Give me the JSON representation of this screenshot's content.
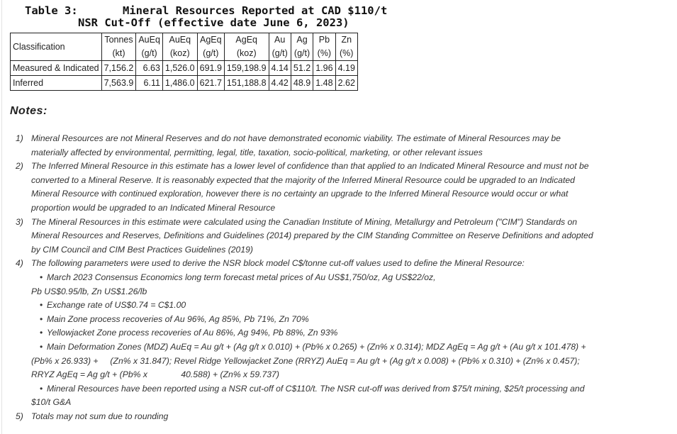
{
  "title": {
    "label": "Table 3:",
    "line1": "Mineral Resources Reported at CAD $110/t",
    "line2": "NSR Cut-Off (effective date June 6, 2023)"
  },
  "table": {
    "headers": [
      {
        "top": "Classification",
        "bottom": ""
      },
      {
        "top": "Tonnes",
        "bottom": "(kt)"
      },
      {
        "top": "AuEq",
        "bottom": "(g/t)"
      },
      {
        "top": "AuEq",
        "bottom": "(koz)"
      },
      {
        "top": "AgEq",
        "bottom": "(g/t)"
      },
      {
        "top": "AgEq",
        "bottom": "(koz)"
      },
      {
        "top": "Au",
        "bottom": "(g/t)"
      },
      {
        "top": "Ag",
        "bottom": "(g/t)"
      },
      {
        "top": "Pb",
        "bottom": "(%)"
      },
      {
        "top": "Zn",
        "bottom": "(%)"
      }
    ],
    "rows": [
      [
        "Measured & Indicated",
        "7,156.2",
        "6.63",
        "1,526.0",
        "691.9",
        "159,198.9",
        "4.14",
        "51.2",
        "1.96",
        "4.19"
      ],
      [
        "Inferred",
        "7,563.9",
        "6.11",
        "1,486.0",
        "621.7",
        "151,188.8",
        "4.42",
        "48.9",
        "1.48",
        "2.62"
      ]
    ]
  },
  "notes": {
    "heading": "Notes:",
    "lines": [
      {
        "marker": "1)",
        "text": "Mineral Resources are not Mineral Reserves and do not have demonstrated economic viability. The estimate of Mineral Resources may be"
      },
      {
        "marker": "",
        "text": "materially affected by environmental, permitting, legal, title, taxation, socio-political, marketing, or other relevant issues"
      },
      {
        "marker": "2)",
        "text": "The Inferred Mineral Resource in this estimate has a lower level of confidence than that applied to an Indicated Mineral Resource and must not be"
      },
      {
        "marker": "",
        "text": "converted to a Mineral Reserve. It is reasonably expected that the majority of the Inferred Mineral Resource could be upgraded to an Indicated"
      },
      {
        "marker": "",
        "text": "Mineral Resource with continued exploration, however there is no certainty an upgrade to the Inferred Mineral Resource would occur or what"
      },
      {
        "marker": "",
        "text": "proportion would be upgraded to an Indicated Mineral Resource"
      },
      {
        "marker": "3)",
        "text": "The Mineral Resources in this estimate were calculated using the Canadian Institute of Mining, Metallurgy and Petroleum (\"CIM\") Standards on"
      },
      {
        "marker": "",
        "text": "Mineral Resources and Reserves, Definitions and Guidelines (2014) prepared by the CIM Standing Committee on Reserve Definitions and adopted"
      },
      {
        "marker": "",
        "text": "by CIM Council and CIM Best Practices Guidelines (2019)"
      },
      {
        "marker": "4)",
        "text": "The following parameters were used to derive the NSR block model C$/tonne cut-off values used to define the Mineral Resource:"
      },
      {
        "marker": "•",
        "text": "March 2023 Consensus Economics long term forecast metal prices of Au US$1,750/oz, Ag US$22/oz,"
      },
      {
        "marker": "",
        "text": "Pb US$0.95/lb, Zn US$1.26/lb"
      },
      {
        "marker": "•",
        "text": "Exchange rate of US$0.74 = C$1.00"
      },
      {
        "marker": "•",
        "text": "Main Zone process recoveries of Au 96%, Ag 85%, Pb 71%, Zn 70%"
      },
      {
        "marker": "•",
        "text": "Yellowjacket Zone process recoveries of Au 86%, Ag 94%, Pb 88%, Zn 93%"
      },
      {
        "marker": "•",
        "text": "Main Deformation Zones (MDZ) AuEq = Au g/t + (Ag g/t x 0.010) + (Pb% x 0.265) + (Zn% x 0.314); MDZ AgEq = Ag g/t + (Au g/t x 101.478) +"
      },
      {
        "marker": "",
        "text": "(Pb% x 26.933) +     (Zn% x 31.847); Revel Ridge Yellowjacket Zone (RRYZ) AuEq = Au g/t + (Ag g/t x 0.008) + (Pb% x 0.310) + (Zn% x 0.457);"
      },
      {
        "marker": "",
        "text": "RRYZ AgEq = Ag g/t + (Pb% x              40.588) + (Zn% x 59.737)"
      },
      {
        "marker": "•",
        "text": "Mineral Resources have been reported using a NSR cut-off of C$110/t. The NSR cut-off was derived from $75/t mining, $25/t processing and"
      },
      {
        "marker": "",
        "text": "$10/t G&A"
      },
      {
        "marker": "5)",
        "text": "Totals may not sum due to rounding"
      }
    ]
  }
}
